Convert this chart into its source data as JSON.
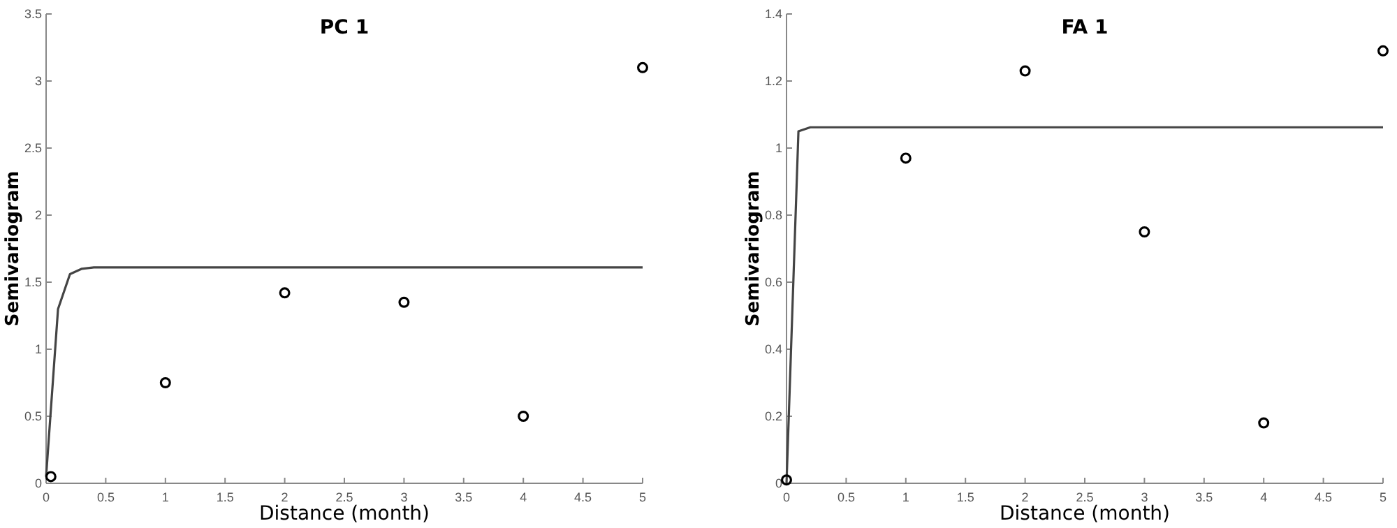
{
  "chart_data": [
    {
      "type": "line",
      "title": "PC 1",
      "xlabel": "Distance (month)",
      "ylabel": "Semivariogram",
      "xlim": [
        0,
        5
      ],
      "ylim": [
        0,
        3.5
      ],
      "xticks": [
        0,
        0.5,
        1,
        1.5,
        2,
        2.5,
        3,
        3.5,
        4,
        4.5,
        5
      ],
      "yticks": [
        0,
        0.5,
        1,
        1.5,
        2,
        2.5,
        3,
        3.5
      ],
      "grid": false,
      "series": [
        {
          "type": "scatter",
          "marker": "circle",
          "color": "#000000",
          "x": [
            0.04,
            1,
            2,
            3,
            4,
            5
          ],
          "values": [
            0.05,
            0.75,
            1.42,
            1.35,
            0.5,
            3.1
          ]
        },
        {
          "color": "#444444",
          "x": [
            0,
            0.1,
            0.2,
            0.3,
            0.4,
            5
          ],
          "values": [
            0.05,
            1.3,
            1.56,
            1.6,
            1.61,
            1.61
          ]
        }
      ]
    },
    {
      "type": "line",
      "title": "FA 1",
      "xlabel": "Distance (month)",
      "ylabel": "Semivariogram",
      "xlim": [
        0,
        5
      ],
      "ylim": [
        0,
        1.4
      ],
      "xticks": [
        0,
        0.5,
        1,
        1.5,
        2,
        2.5,
        3,
        3.5,
        4,
        4.5,
        5
      ],
      "yticks": [
        0,
        0.2,
        0.4,
        0.6,
        0.8,
        1,
        1.2,
        1.4
      ],
      "grid": false,
      "series": [
        {
          "type": "scatter",
          "marker": "circle",
          "color": "#000000",
          "x": [
            0,
            1,
            2,
            3,
            4,
            5
          ],
          "values": [
            0.01,
            0.97,
            1.23,
            0.75,
            0.18,
            1.29
          ]
        },
        {
          "color": "#444444",
          "x": [
            0,
            0.1,
            0.2,
            5
          ],
          "values": [
            0,
            1.05,
            1.062,
            1.062
          ]
        }
      ]
    }
  ]
}
